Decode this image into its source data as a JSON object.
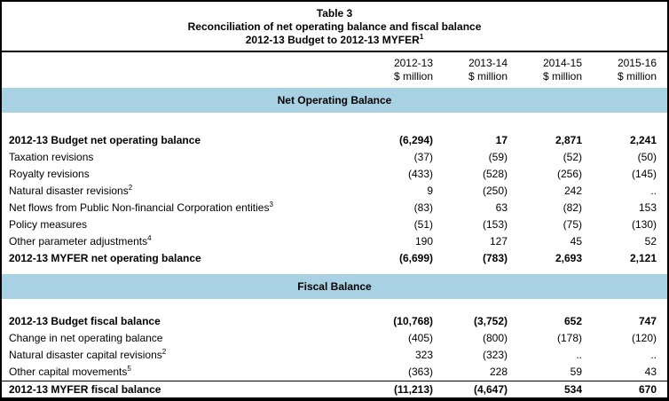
{
  "title": {
    "table_number": "Table 3",
    "line2": "Reconciliation of net operating balance and fiscal balance",
    "line3": "2012-13 Budget to 2012-13 MYFER",
    "line3_sup": "1"
  },
  "columns": [
    {
      "year": "2012-13",
      "unit": "$ million"
    },
    {
      "year": "2013-14",
      "unit": "$ million"
    },
    {
      "year": "2014-15",
      "unit": "$ million"
    },
    {
      "year": "2015-16",
      "unit": "$ million"
    }
  ],
  "sections": [
    {
      "header": "Net Operating Balance",
      "rows": [
        {
          "label": "2012-13 Budget net operating balance",
          "values": [
            "(6,294)",
            "17",
            "2,871",
            "2,241"
          ]
        },
        {
          "label": "Taxation revisions",
          "values": [
            "(37)",
            "(59)",
            "(52)",
            "(50)"
          ]
        },
        {
          "label": "Royalty revisions",
          "values": [
            "(433)",
            "(528)",
            "(256)",
            "(145)"
          ]
        },
        {
          "label": "Natural disaster revisions",
          "sup": "2",
          "values": [
            "9",
            "(250)",
            "242",
            ".."
          ]
        },
        {
          "label": "Net flows from Public Non-financial Corporation entities",
          "sup": "3",
          "values": [
            "(83)",
            "63",
            "(82)",
            "153"
          ]
        },
        {
          "label": "Policy measures",
          "values": [
            "(51)",
            "(153)",
            "(75)",
            "(130)"
          ]
        },
        {
          "label": "Other parameter adjustments",
          "sup": "4",
          "values": [
            "190",
            "127",
            "45",
            "52"
          ]
        },
        {
          "label": "2012-13 MYFER net operating balance",
          "values": [
            "(6,699)",
            "(783)",
            "2,693",
            "2,121"
          ]
        }
      ]
    },
    {
      "header": "Fiscal Balance",
      "rows": [
        {
          "label": "2012-13 Budget fiscal balance",
          "values": [
            "(10,768)",
            "(3,752)",
            "652",
            "747"
          ]
        },
        {
          "label": "Change in net operating balance",
          "values": [
            "(405)",
            "(800)",
            "(178)",
            "(120)"
          ]
        },
        {
          "label": "Natural disaster capital revisions",
          "sup": "2",
          "values": [
            "323",
            "(323)",
            "..",
            ".."
          ]
        },
        {
          "label": "Other capital movements",
          "sup": "5",
          "values": [
            "(363)",
            "228",
            "59",
            "43"
          ]
        },
        {
          "label": "2012-13 MYFER fiscal balance",
          "values": [
            "(11,213)",
            "(4,647)",
            "534",
            "670"
          ]
        }
      ]
    }
  ],
  "colors": {
    "band_blue": "#A8D2E4",
    "border_black": "#000000"
  }
}
